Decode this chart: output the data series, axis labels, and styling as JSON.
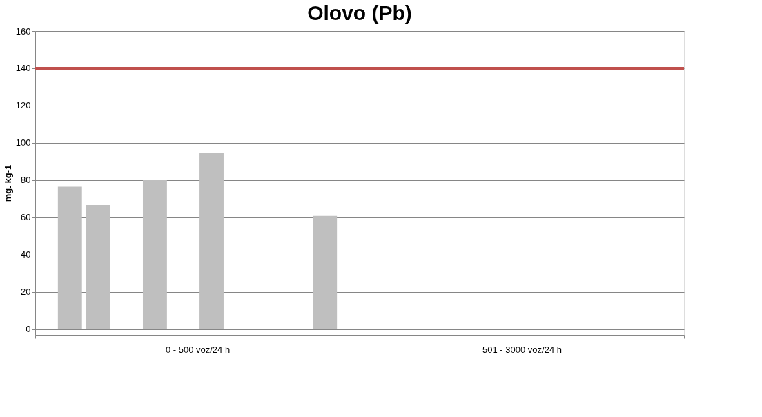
{
  "chart_data": {
    "type": "bar",
    "title": "Olovo (Pb)",
    "ylabel": "mg. kg-1",
    "categories": [
      "0 - 500 voz/24 h",
      "501 - 3000 voz/24 h"
    ],
    "series": [
      {
        "color": "#bfbfbf",
        "values": [
          76.5,
          null
        ]
      },
      {
        "color": "#bfbfbf",
        "values": [
          66.6,
          null
        ]
      },
      {
        "color": "#bfbfbf",
        "values": [
          null,
          null
        ]
      },
      {
        "color": "#bfbfbf",
        "values": [
          80,
          null
        ]
      },
      {
        "color": "#bfbfbf",
        "values": [
          null,
          null
        ]
      },
      {
        "color": "#bfbfbf",
        "values": [
          94.8,
          null
        ]
      },
      {
        "color": "#bfbfbf",
        "values": [
          null,
          null
        ]
      },
      {
        "color": "#bfbfbf",
        "values": [
          null,
          null
        ]
      },
      {
        "color": "#bfbfbf",
        "values": [
          null,
          null
        ]
      },
      {
        "color": "#bfbfbf",
        "values": [
          60.8,
          null
        ]
      }
    ],
    "ylim": [
      -3,
      160
    ],
    "yticks": [
      0,
      20,
      40,
      60,
      80,
      100,
      120,
      140,
      160
    ],
    "grid": "y",
    "legend": false,
    "ref_lines": [
      {
        "axis": "y",
        "value": 140,
        "color": "#c0504d"
      }
    ]
  }
}
